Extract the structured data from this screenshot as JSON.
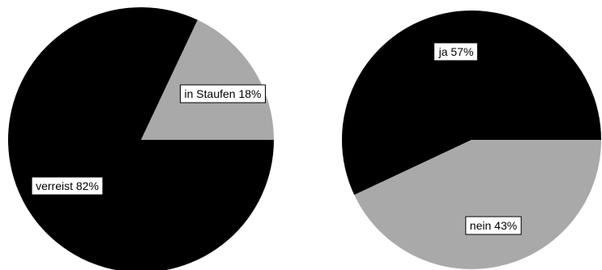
{
  "chart_data": [
    {
      "type": "pie",
      "slices": [
        {
          "label": "in Staufen 18%",
          "value": 18,
          "color": "#a9a9a9"
        },
        {
          "label": "verreist 82%",
          "value": 82,
          "color": "#000000"
        }
      ]
    },
    {
      "type": "pie",
      "slices": [
        {
          "label": "ja 57%",
          "value": 57,
          "color": "#000000"
        },
        {
          "label": "nein 43%",
          "value": 43,
          "color": "#a9a9a9"
        }
      ]
    }
  ]
}
